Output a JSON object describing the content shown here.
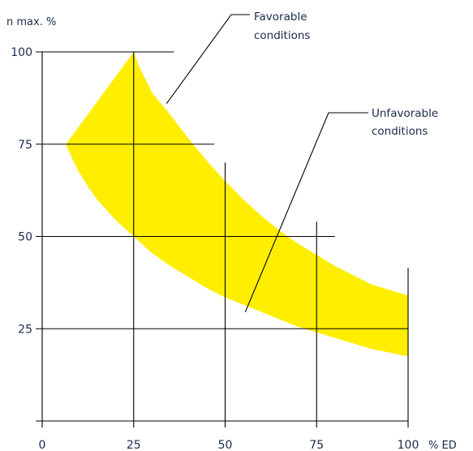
{
  "chart_data": {
    "type": "area",
    "title": "",
    "xlabel": "% ED",
    "ylabel": "n max. %",
    "xlim": [
      0,
      100
    ],
    "ylim": [
      0,
      100
    ],
    "x_ticks": [
      "0",
      "25",
      "50",
      "75",
      "100"
    ],
    "y_ticks": [
      "25",
      "50",
      "75",
      "100"
    ],
    "fill_color": "#ffee00",
    "line_color": "#000000",
    "band": {
      "upper": [
        [
          6.5,
          75
        ],
        [
          25,
          100
        ],
        [
          26.5,
          96
        ],
        [
          28,
          93
        ],
        [
          30,
          89
        ],
        [
          35,
          83
        ],
        [
          40,
          76.5
        ],
        [
          45,
          70.5
        ],
        [
          50,
          65
        ],
        [
          55,
          60
        ],
        [
          60,
          55.5
        ],
        [
          65,
          51.5
        ],
        [
          70,
          48
        ],
        [
          75,
          45
        ],
        [
          80,
          42
        ],
        [
          85,
          39.5
        ],
        [
          90,
          37
        ],
        [
          95,
          35.5
        ],
        [
          100,
          34
        ]
      ],
      "lower": [
        [
          6.5,
          75
        ],
        [
          8,
          71.5
        ],
        [
          10,
          67.5
        ],
        [
          12.5,
          63.5
        ],
        [
          15,
          60
        ],
        [
          20,
          54.5
        ],
        [
          25,
          50
        ],
        [
          30,
          45.5
        ],
        [
          35,
          42
        ],
        [
          40,
          39
        ],
        [
          45,
          36
        ],
        [
          50,
          33.5
        ],
        [
          55,
          31.5
        ],
        [
          60,
          29.5
        ],
        [
          65,
          27.5
        ],
        [
          70,
          25.5
        ],
        [
          75,
          24
        ],
        [
          80,
          22.5
        ],
        [
          85,
          21
        ],
        [
          90,
          19.5
        ],
        [
          95,
          18.5
        ],
        [
          100,
          17.5
        ]
      ]
    },
    "gridlines": {
      "horizontal": [
        {
          "y": 100,
          "x_from": 0,
          "x_to": 36
        },
        {
          "y": 75,
          "x_from": 0,
          "x_to": 47
        },
        {
          "y": 50,
          "x_from": 0,
          "x_to": 80
        },
        {
          "y": 25,
          "x_from": 0,
          "x_to": 100
        },
        {
          "y": 0,
          "x_from": 0,
          "x_to": 100
        }
      ],
      "vertical": [
        {
          "x": 0,
          "y_from": 0,
          "y_to": 100
        },
        {
          "x": 25,
          "y_from": 0,
          "y_to": 100
        },
        {
          "x": 50,
          "y_from": 0,
          "y_to": 70
        },
        {
          "x": 75,
          "y_from": 0,
          "y_to": 54
        },
        {
          "x": 100,
          "y_from": 0,
          "y_to": 41.5
        }
      ]
    },
    "annotations": [
      {
        "label_lines": [
          "Favorable",
          "conditions"
        ],
        "target": [
          34,
          86
        ]
      },
      {
        "label_lines": [
          "Unfavorable",
          "conditions"
        ],
        "target": [
          55.5,
          29.5
        ]
      }
    ]
  }
}
